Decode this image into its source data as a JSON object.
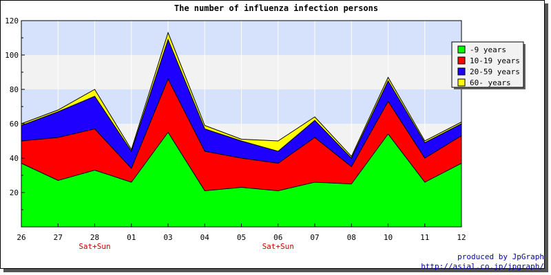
{
  "chart_data": {
    "type": "area",
    "stacked": true,
    "title": "The number of influenza infection persons",
    "categories": [
      "26",
      "27",
      "28",
      "01",
      "03",
      "04",
      "05",
      "06",
      "07",
      "08",
      "10",
      "11",
      "12"
    ],
    "weekend_labels": [
      {
        "category": "28",
        "label": "Sat+Sun"
      },
      {
        "category": "06",
        "label": "Sat+Sun"
      }
    ],
    "ylim": [
      0,
      120
    ],
    "yticks": [
      20,
      40,
      60,
      80,
      100,
      120
    ],
    "legend_position": "top-right",
    "band_colors": [
      "#d6e1fb",
      "#f2f2f2"
    ],
    "series": [
      {
        "name": "-9 years",
        "color": "#00ff00",
        "values": [
          37,
          27,
          33,
          26,
          55,
          21,
          23,
          21,
          26,
          25,
          54,
          26,
          37
        ]
      },
      {
        "name": "10-19 years",
        "color": "#ff0000",
        "values": [
          13,
          25,
          24,
          8,
          31,
          23,
          17,
          16,
          26,
          10,
          19,
          14,
          16
        ]
      },
      {
        "name": "20-59 years",
        "color": "#1e00ff",
        "values": [
          9,
          15,
          19,
          10,
          23,
          13,
          10,
          7,
          10,
          5,
          12,
          9,
          7
        ]
      },
      {
        "name": "60- years",
        "color": "#ffff00",
        "values": [
          1,
          1,
          4,
          1,
          4,
          2,
          1,
          6,
          2,
          1,
          2,
          1,
          1
        ]
      }
    ]
  },
  "footer": {
    "produced_by": "produced by JpGraph",
    "url": "http://asial.co.jp/jpgraph/"
  }
}
